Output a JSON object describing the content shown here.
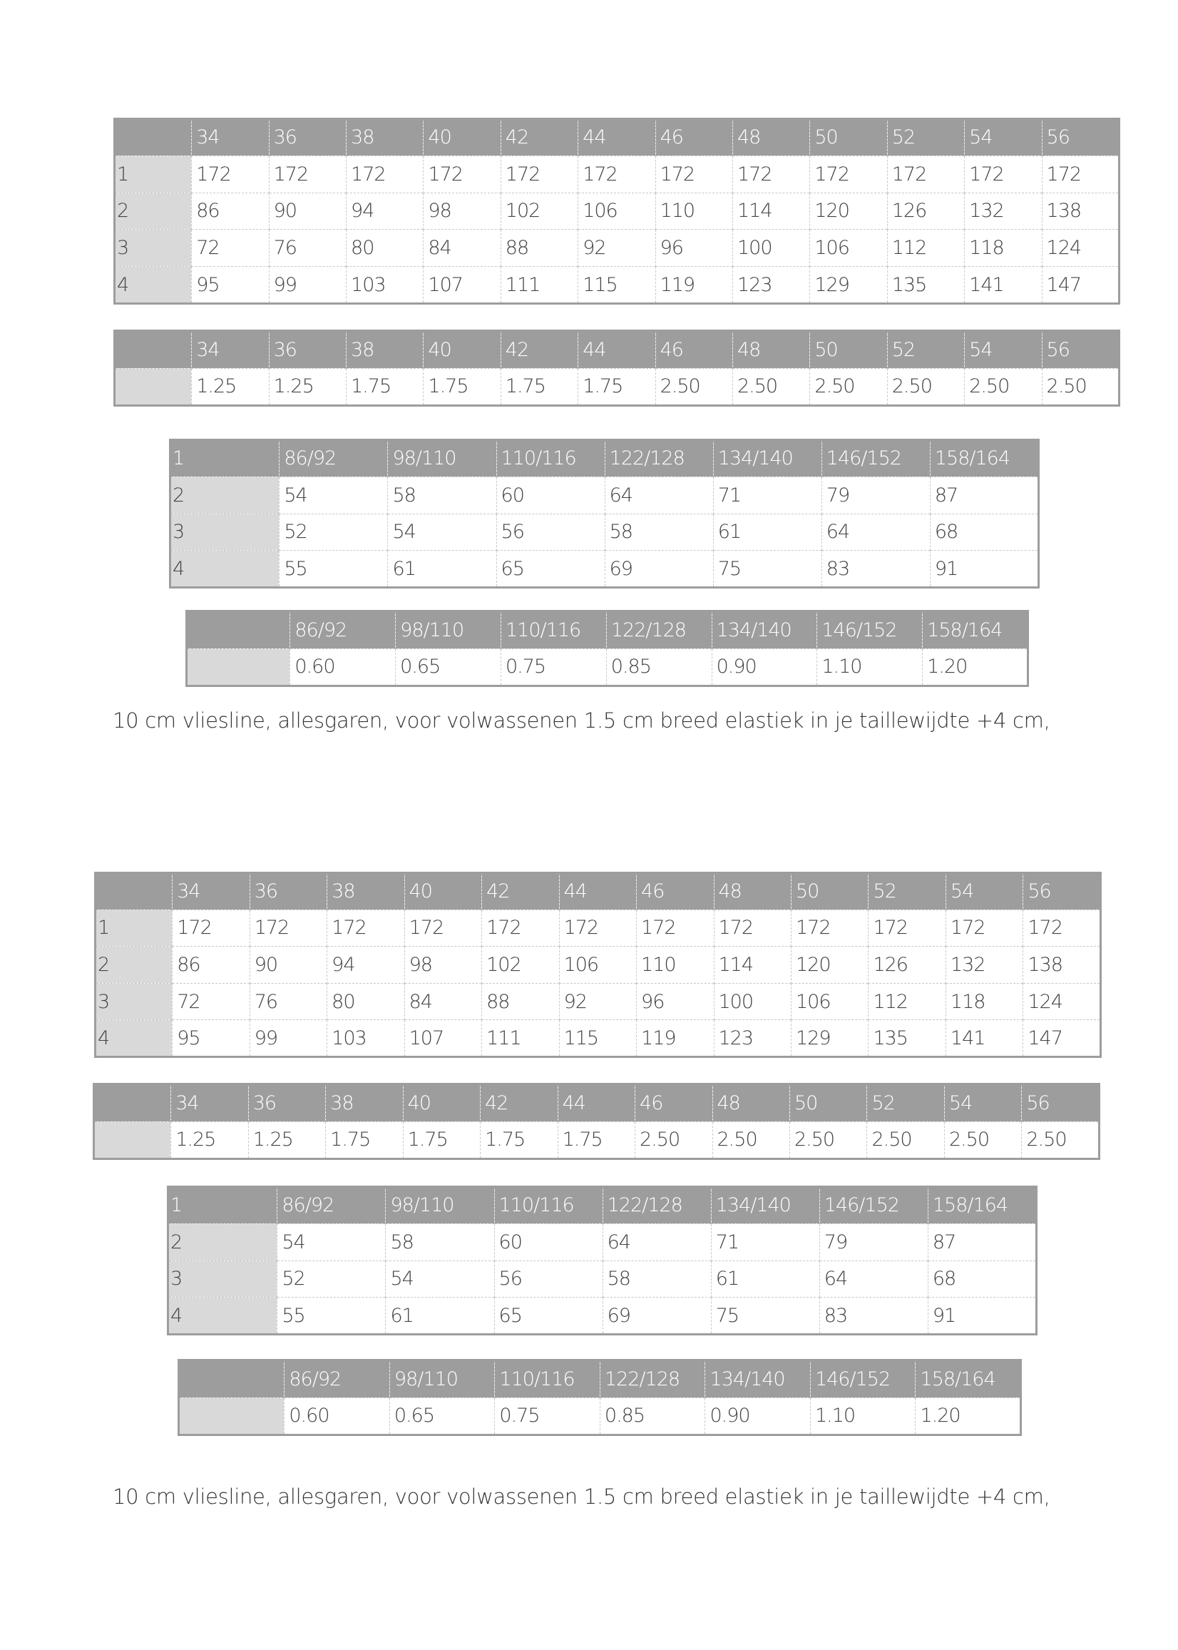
{
  "sections": [
    {
      "adult_table": {
        "header": [
          "",
          "34",
          "36",
          "38",
          "40",
          "42",
          "44",
          "46",
          "48",
          "50",
          "52",
          "54",
          "56"
        ],
        "rows": [
          [
            "1",
            "172",
            "172",
            "172",
            "172",
            "172",
            "172",
            "172",
            "172",
            "172",
            "172",
            "172",
            "172"
          ],
          [
            "2",
            "86",
            "90",
            "94",
            "98",
            "102",
            "106",
            "110",
            "114",
            "120",
            "126",
            "132",
            "138"
          ],
          [
            "3",
            "72",
            "76",
            "80",
            "84",
            "88",
            "92",
            "96",
            "100",
            "106",
            "112",
            "118",
            "124"
          ],
          [
            "4",
            "95",
            "99",
            "103",
            "107",
            "111",
            "115",
            "119",
            "123",
            "129",
            "135",
            "141",
            "147"
          ]
        ]
      },
      "adult_fabric": {
        "header": [
          "",
          "34",
          "36",
          "38",
          "40",
          "42",
          "44",
          "46",
          "48",
          "50",
          "52",
          "54",
          "56"
        ],
        "rows": [
          [
            "",
            "1.25",
            "1.25",
            "1.75",
            "1.75",
            "1.75",
            "1.75",
            "2.50",
            "2.50",
            "2.50",
            "2.50",
            "2.50",
            "2.50"
          ]
        ]
      },
      "kids_table": {
        "header": [
          "1",
          "86/92",
          "98/110",
          "110/116",
          "122/128",
          "134/140",
          "146/152",
          "158/164"
        ],
        "rows": [
          [
            "2",
            "54",
            "58",
            "60",
            "64",
            "71",
            "79",
            "87"
          ],
          [
            "3",
            "52",
            "54",
            "56",
            "58",
            "61",
            "64",
            "68"
          ],
          [
            "4",
            "55",
            "61",
            "65",
            "69",
            "75",
            "83",
            "91"
          ]
        ]
      },
      "kids_fabric": {
        "header": [
          "",
          "86/92",
          "98/110",
          "110/116",
          "122/128",
          "134/140",
          "146/152",
          "158/164"
        ],
        "rows": [
          [
            "",
            "0.60",
            "0.65",
            "0.75",
            "0.85",
            "0.90",
            "1.10",
            "1.20"
          ]
        ]
      },
      "note": "10 cm vliesline, allesgaren, voor volwassenen 1.5 cm breed elastiek in je taillewijdte +4 cm,"
    },
    {
      "adult_table": {
        "header": [
          "",
          "34",
          "36",
          "38",
          "40",
          "42",
          "44",
          "46",
          "48",
          "50",
          "52",
          "54",
          "56"
        ],
        "rows": [
          [
            "1",
            "172",
            "172",
            "172",
            "172",
            "172",
            "172",
            "172",
            "172",
            "172",
            "172",
            "172",
            "172"
          ],
          [
            "2",
            "86",
            "90",
            "94",
            "98",
            "102",
            "106",
            "110",
            "114",
            "120",
            "126",
            "132",
            "138"
          ],
          [
            "3",
            "72",
            "76",
            "80",
            "84",
            "88",
            "92",
            "96",
            "100",
            "106",
            "112",
            "118",
            "124"
          ],
          [
            "4",
            "95",
            "99",
            "103",
            "107",
            "111",
            "115",
            "119",
            "123",
            "129",
            "135",
            "141",
            "147"
          ]
        ]
      },
      "adult_fabric": {
        "header": [
          "",
          "34",
          "36",
          "38",
          "40",
          "42",
          "44",
          "46",
          "48",
          "50",
          "52",
          "54",
          "56"
        ],
        "rows": [
          [
            "",
            "1.25",
            "1.25",
            "1.75",
            "1.75",
            "1.75",
            "1.75",
            "2.50",
            "2.50",
            "2.50",
            "2.50",
            "2.50",
            "2.50"
          ]
        ]
      },
      "kids_table": {
        "header": [
          "1",
          "86/92",
          "98/110",
          "110/116",
          "122/128",
          "134/140",
          "146/152",
          "158/164"
        ],
        "rows": [
          [
            "2",
            "54",
            "58",
            "60",
            "64",
            "71",
            "79",
            "87"
          ],
          [
            "3",
            "52",
            "54",
            "56",
            "58",
            "61",
            "64",
            "68"
          ],
          [
            "4",
            "55",
            "61",
            "65",
            "69",
            "75",
            "83",
            "91"
          ]
        ]
      },
      "kids_fabric": {
        "header": [
          "",
          "86/92",
          "98/110",
          "110/116",
          "122/128",
          "134/140",
          "146/152",
          "158/164"
        ],
        "rows": [
          [
            "",
            "0.60",
            "0.65",
            "0.75",
            "0.85",
            "0.90",
            "1.10",
            "1.20"
          ]
        ]
      },
      "note": "10 cm vliesline, allesgaren, voor volwassenen 1.5 cm breed elastiek in je taillewijdte +4 cm,"
    }
  ],
  "colors": {
    "header": "#9d9d9d",
    "row_label": "#d9d9d9"
  }
}
